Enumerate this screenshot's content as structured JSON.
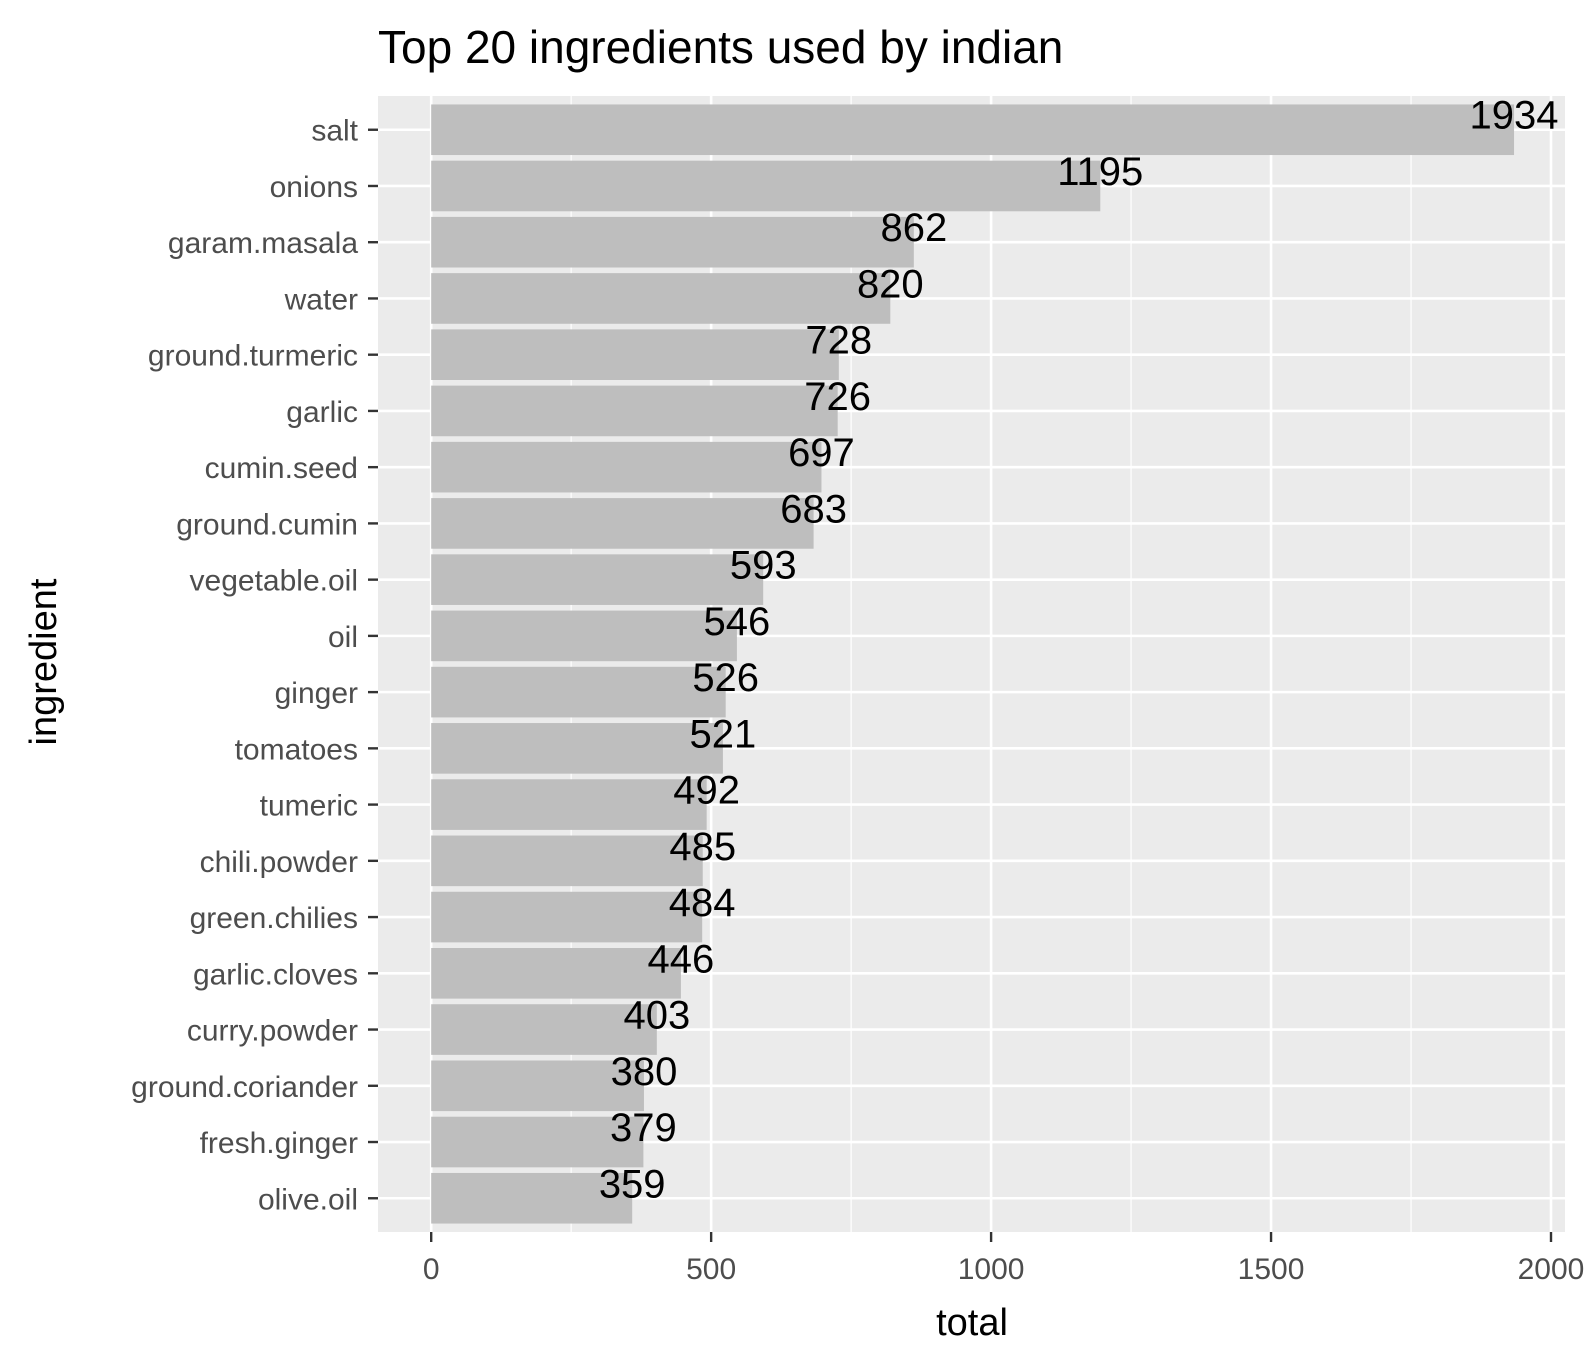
{
  "chart_data": {
    "type": "bar",
    "orientation": "horizontal",
    "title": "Top 20 ingredients used by indian",
    "xlabel": "total",
    "ylabel": "ingredient",
    "xlim": [
      -95,
      2025
    ],
    "xticks": [
      0,
      500,
      1000,
      1500,
      2000
    ],
    "xtick_labels": [
      "0",
      "500",
      "1000",
      "1500",
      "2000"
    ],
    "grid": true,
    "legend": "none",
    "categories": [
      "salt",
      "onions",
      "garam.masala",
      "water",
      "ground.turmeric",
      "garlic",
      "cumin.seed",
      "ground.cumin",
      "vegetable.oil",
      "oil",
      "ginger",
      "tomatoes",
      "tumeric",
      "chili.powder",
      "green.chilies",
      "garlic.cloves",
      "curry.powder",
      "ground.coriander",
      "fresh.ginger",
      "olive.oil"
    ],
    "values": [
      1934,
      1195,
      862,
      820,
      728,
      726,
      697,
      683,
      593,
      546,
      526,
      521,
      492,
      485,
      484,
      446,
      403,
      380,
      379,
      359
    ],
    "data_labels": [
      "1934",
      "1195",
      "862",
      "820",
      "728",
      "726",
      "697",
      "683",
      "593",
      "546",
      "526",
      "521",
      "492",
      "485",
      "484",
      "446",
      "403",
      "380",
      "379",
      "359"
    ]
  },
  "colors": {
    "panel_background": "#ebebeb",
    "grid_major": "#ffffff",
    "bar_fill": "#bebebe",
    "tick_mark": "#333333"
  }
}
